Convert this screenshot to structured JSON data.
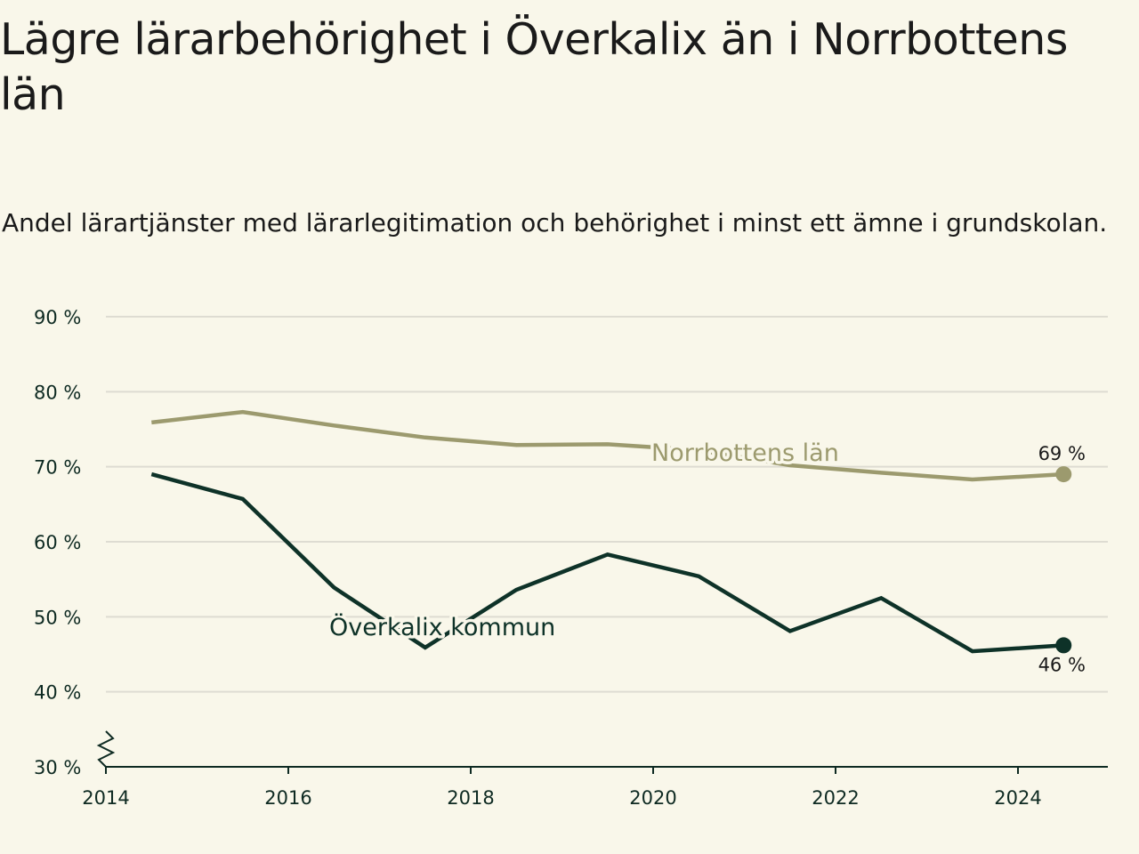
{
  "colors": {
    "background": "#f9f7ea",
    "norrbotten": "#9c9a6e",
    "overkalix": "#0e3228",
    "grid": "#dedcd2",
    "axis": "#0e2a22"
  },
  "chart_data": {
    "type": "line",
    "title": "Lägre lärarbehörighet i Överkalix än i Norrbottens län",
    "subtitle": "Andel lärartjänster med lärarlegitimation och behörighet i minst ett ämne i grundskolan.",
    "xlabel": "",
    "ylabel": "",
    "xlim": [
      2014,
      2025
    ],
    "ylim": [
      30,
      90
    ],
    "y_axis_break": true,
    "grid": true,
    "x_ticks": [
      {
        "value": 2014,
        "label": "2014"
      },
      {
        "value": 2016,
        "label": "2016"
      },
      {
        "value": 2018,
        "label": "2018"
      },
      {
        "value": 2020,
        "label": "2020"
      },
      {
        "value": 2022,
        "label": "2022"
      },
      {
        "value": 2024,
        "label": "2024"
      }
    ],
    "y_ticks": [
      {
        "value": 90,
        "label": "90 %"
      },
      {
        "value": 80,
        "label": "80 %"
      },
      {
        "value": 70,
        "label": "70 %"
      },
      {
        "value": 60,
        "label": "60 %"
      },
      {
        "value": 50,
        "label": "50 %"
      },
      {
        "value": 40,
        "label": "40 %"
      },
      {
        "value": 30,
        "label": "30 %"
      }
    ],
    "x": [
      2014.5,
      2015.5,
      2016.5,
      2017.5,
      2018.5,
      2019.5,
      2020.5,
      2021.5,
      2022.5,
      2023.5,
      2024.5
    ],
    "series": [
      {
        "key": "norrbotten",
        "name": "Norrbottens län",
        "color": "#9c9a6e",
        "values": [
          75.9,
          77.3,
          75.5,
          73.9,
          72.9,
          73.0,
          72.2,
          70.2,
          69.2,
          68.3,
          69.0
        ],
        "end_label": "69 %"
      },
      {
        "key": "overkalix",
        "name": "Överkalix kommun",
        "color": "#0e3228",
        "values": [
          69.0,
          65.7,
          53.9,
          45.9,
          53.6,
          58.3,
          55.4,
          48.1,
          52.5,
          45.4,
          46.2
        ],
        "end_label": "46 %"
      }
    ]
  }
}
